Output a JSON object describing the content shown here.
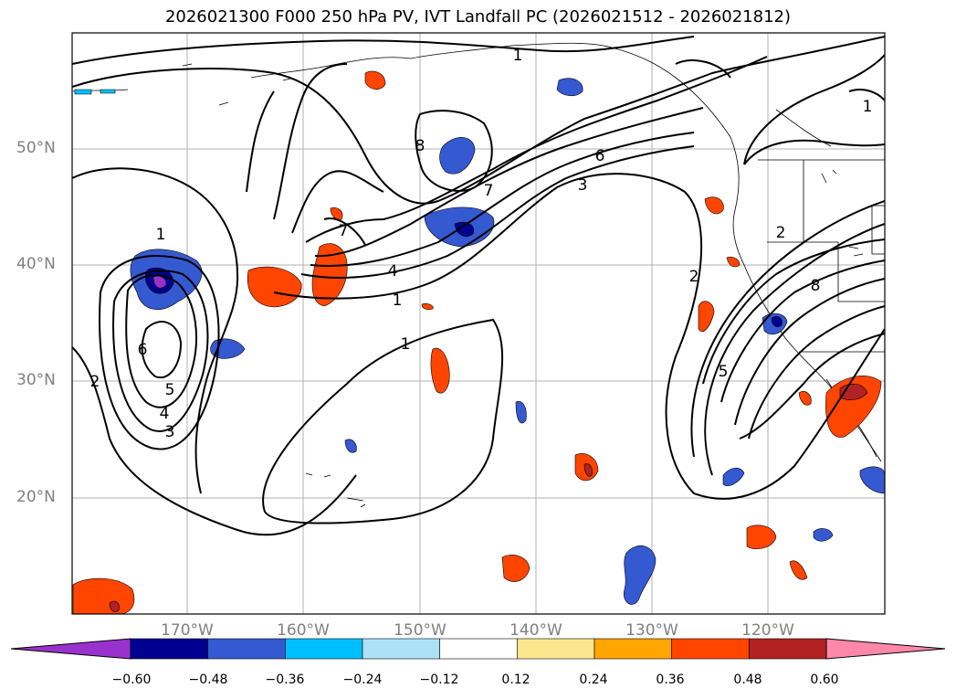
{
  "title": "2026021300 F000 250 hPa PV, IVT Landfall PC (2026021512 - 2026021812)",
  "map": {
    "extent": {
      "lon_min": -180,
      "lon_max": -110,
      "lat_min": 10,
      "lat_max": 60
    },
    "lat_labels": [
      "50°N",
      "40°N",
      "30°N",
      "20°N"
    ],
    "lon_labels": [
      "170°W",
      "160°W",
      "150°W",
      "140°W",
      "130°W",
      "120°W"
    ],
    "grid": true,
    "contour_color": "#000000",
    "contour_labels": [
      "1",
      "1",
      "1",
      "1",
      "1",
      "2",
      "2",
      "2",
      "3",
      "3",
      "4",
      "4",
      "5",
      "5",
      "6",
      "6",
      "7",
      "7",
      "8",
      "8"
    ]
  },
  "colorbar": {
    "ticks": [
      "−0.60",
      "−0.48",
      "−0.36",
      "−0.24",
      "−0.12",
      "0.12",
      "0.24",
      "0.36",
      "0.48",
      "0.60"
    ],
    "colors": [
      "#9932CC",
      "#000090",
      "#3559D0",
      "#00BFFF",
      "#ADE1F7",
      "#FFFFFF",
      "#FCE78E",
      "#FFA500",
      "#FF4500",
      "#B22222",
      "#FF88AA"
    ],
    "extend": "both"
  }
}
